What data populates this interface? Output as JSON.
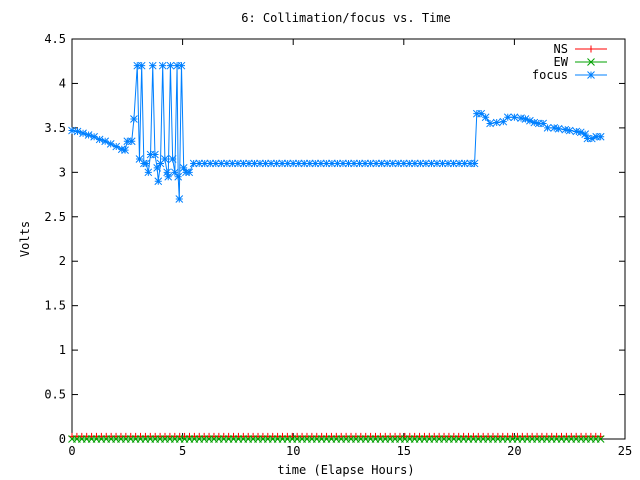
{
  "chart_data": {
    "type": "line",
    "title": "6: Collimation/focus vs. Time",
    "xlabel": "time (Elapse Hours)",
    "ylabel": "Volts",
    "xlim": [
      0,
      25
    ],
    "ylim": [
      0,
      4.5
    ],
    "x_ticks": [
      0,
      5,
      10,
      15,
      20,
      25
    ],
    "y_ticks": [
      0,
      0.5,
      1,
      1.5,
      2,
      2.5,
      3,
      3.5,
      4,
      4.5
    ],
    "x_tick_labels": [
      "0",
      "5",
      "10",
      "15",
      "20",
      "25"
    ],
    "y_tick_labels": [
      "0",
      "0.5",
      "1",
      "1.5",
      "2",
      "2.5",
      "3",
      "3.5",
      "4",
      "4.5"
    ],
    "grid": false,
    "legend_position": "top-right",
    "series": [
      {
        "name": "NS",
        "color": "#ff0000",
        "marker": "plus",
        "points": [
          [
            0,
            0.03
          ],
          [
            23.9,
            0.03
          ]
        ]
      },
      {
        "name": "EW",
        "color": "#00a000",
        "marker": "cross",
        "points": [
          [
            0,
            0.0
          ],
          [
            23.9,
            0.0
          ]
        ]
      },
      {
        "name": "focus",
        "color": "#0080ff",
        "marker": "star",
        "points": [
          [
            0.0,
            3.47
          ],
          [
            0.25,
            3.46
          ],
          [
            0.5,
            3.44
          ],
          [
            0.75,
            3.42
          ],
          [
            1.0,
            3.4
          ],
          [
            1.25,
            3.37
          ],
          [
            1.5,
            3.35
          ],
          [
            1.75,
            3.32
          ],
          [
            2.0,
            3.29
          ],
          [
            2.25,
            3.26
          ],
          [
            2.4,
            3.25
          ],
          [
            2.5,
            3.35
          ],
          [
            2.7,
            3.35
          ],
          [
            2.8,
            3.6
          ],
          [
            2.95,
            4.2
          ],
          [
            3.05,
            3.15
          ],
          [
            3.15,
            4.2
          ],
          [
            3.25,
            3.1
          ],
          [
            3.35,
            3.1
          ],
          [
            3.45,
            3.0
          ],
          [
            3.55,
            3.2
          ],
          [
            3.65,
            4.2
          ],
          [
            3.75,
            3.2
          ],
          [
            3.85,
            3.05
          ],
          [
            3.9,
            2.9
          ],
          [
            4.0,
            3.1
          ],
          [
            4.1,
            4.2
          ],
          [
            4.2,
            3.15
          ],
          [
            4.3,
            3.0
          ],
          [
            4.35,
            2.95
          ],
          [
            4.45,
            4.2
          ],
          [
            4.55,
            3.15
          ],
          [
            4.65,
            3.0
          ],
          [
            4.75,
            4.2
          ],
          [
            4.8,
            2.95
          ],
          [
            4.85,
            2.7
          ],
          [
            4.95,
            4.2
          ],
          [
            5.05,
            3.05
          ],
          [
            5.15,
            3.0
          ],
          [
            5.3,
            3.0
          ],
          [
            5.5,
            3.1
          ],
          [
            6,
            3.1
          ],
          [
            7,
            3.1
          ],
          [
            8,
            3.1
          ],
          [
            9,
            3.1
          ],
          [
            10,
            3.1
          ],
          [
            11,
            3.1
          ],
          [
            12,
            3.1
          ],
          [
            13,
            3.1
          ],
          [
            14,
            3.1
          ],
          [
            15,
            3.1
          ],
          [
            16,
            3.1
          ],
          [
            17,
            3.1
          ],
          [
            18,
            3.1
          ],
          [
            18.2,
            3.1
          ],
          [
            18.3,
            3.66
          ],
          [
            18.5,
            3.66
          ],
          [
            18.7,
            3.62
          ],
          [
            18.9,
            3.55
          ],
          [
            19.2,
            3.56
          ],
          [
            19.5,
            3.57
          ],
          [
            19.7,
            3.62
          ],
          [
            20.0,
            3.62
          ],
          [
            20.3,
            3.61
          ],
          [
            20.5,
            3.6
          ],
          [
            20.7,
            3.58
          ],
          [
            20.9,
            3.56
          ],
          [
            21.1,
            3.55
          ],
          [
            21.3,
            3.55
          ],
          [
            21.5,
            3.5
          ],
          [
            21.8,
            3.5
          ],
          [
            22.0,
            3.49
          ],
          [
            22.3,
            3.48
          ],
          [
            22.5,
            3.47
          ],
          [
            22.8,
            3.46
          ],
          [
            23.0,
            3.45
          ],
          [
            23.2,
            3.43
          ],
          [
            23.3,
            3.38
          ],
          [
            23.5,
            3.38
          ],
          [
            23.7,
            3.4
          ],
          [
            23.9,
            3.4
          ]
        ]
      }
    ]
  }
}
